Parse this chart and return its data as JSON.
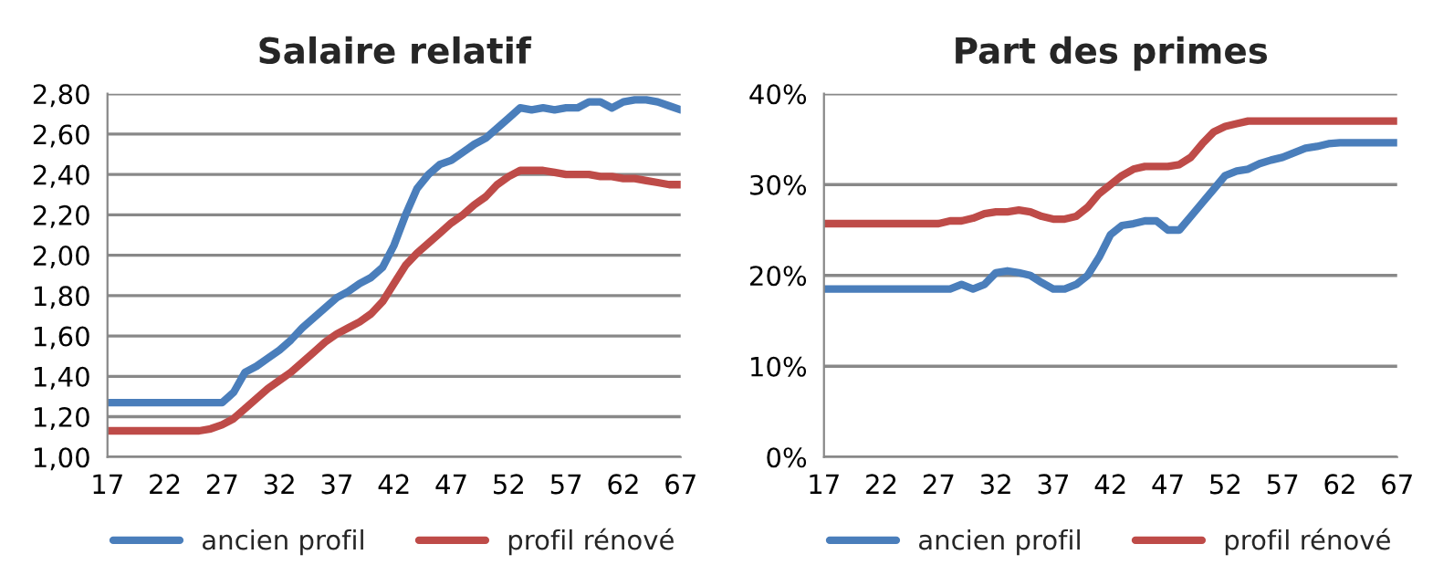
{
  "chart_data": [
    {
      "type": "line",
      "title": "Salaire relatif",
      "x": [
        17,
        18,
        19,
        20,
        21,
        22,
        23,
        24,
        25,
        26,
        27,
        28,
        29,
        30,
        31,
        32,
        33,
        34,
        35,
        36,
        37,
        38,
        39,
        40,
        41,
        42,
        43,
        44,
        45,
        46,
        47,
        48,
        49,
        50,
        51,
        52,
        53,
        54,
        55,
        56,
        57,
        58,
        59,
        60,
        61,
        62,
        63,
        64,
        65,
        66,
        67
      ],
      "series": [
        {
          "name": "ancien profil",
          "color": "#4a7ebb",
          "values": [
            1.27,
            1.27,
            1.27,
            1.27,
            1.27,
            1.27,
            1.27,
            1.27,
            1.27,
            1.27,
            1.27,
            1.32,
            1.42,
            1.45,
            1.49,
            1.53,
            1.58,
            1.64,
            1.69,
            1.74,
            1.79,
            1.82,
            1.86,
            1.89,
            1.94,
            2.05,
            2.2,
            2.33,
            2.4,
            2.45,
            2.47,
            2.51,
            2.55,
            2.58,
            2.63,
            2.68,
            2.73,
            2.72,
            2.73,
            2.72,
            2.73,
            2.73,
            2.76,
            2.76,
            2.73,
            2.76,
            2.77,
            2.77,
            2.76,
            2.74,
            2.72
          ]
        },
        {
          "name": "profil rénové",
          "color": "#be4b48",
          "values": [
            1.13,
            1.13,
            1.13,
            1.13,
            1.13,
            1.13,
            1.13,
            1.13,
            1.13,
            1.14,
            1.16,
            1.19,
            1.24,
            1.29,
            1.34,
            1.38,
            1.42,
            1.47,
            1.52,
            1.57,
            1.61,
            1.64,
            1.67,
            1.71,
            1.77,
            1.86,
            1.95,
            2.01,
            2.06,
            2.11,
            2.16,
            2.2,
            2.25,
            2.29,
            2.35,
            2.39,
            2.42,
            2.42,
            2.42,
            2.41,
            2.4,
            2.4,
            2.4,
            2.39,
            2.39,
            2.38,
            2.38,
            2.37,
            2.36,
            2.35,
            2.35
          ]
        }
      ],
      "xlim": [
        17,
        67
      ],
      "xticks": [
        17,
        22,
        27,
        32,
        37,
        42,
        47,
        52,
        57,
        62,
        67
      ],
      "ylim": [
        1.0,
        2.8
      ],
      "yticks": [
        {
          "value": 1.0,
          "label": "1,00"
        },
        {
          "value": 1.2,
          "label": "1,20"
        },
        {
          "value": 1.4,
          "label": "1,40"
        },
        {
          "value": 1.6,
          "label": "1,60"
        },
        {
          "value": 1.8,
          "label": "1,80"
        },
        {
          "value": 2.0,
          "label": "2,00"
        },
        {
          "value": 2.2,
          "label": "2,20"
        },
        {
          "value": 2.4,
          "label": "2,40"
        },
        {
          "value": 2.6,
          "label": "2,60"
        },
        {
          "value": 2.8,
          "label": "2,80"
        }
      ],
      "grid": "y",
      "legend": "bottom",
      "line_style": "solid",
      "marker": "none"
    },
    {
      "type": "line",
      "title": "Part des primes",
      "x": [
        17,
        18,
        19,
        20,
        21,
        22,
        23,
        24,
        25,
        26,
        27,
        28,
        29,
        30,
        31,
        32,
        33,
        34,
        35,
        36,
        37,
        38,
        39,
        40,
        41,
        42,
        43,
        44,
        45,
        46,
        47,
        48,
        49,
        50,
        51,
        52,
        53,
        54,
        55,
        56,
        57,
        58,
        59,
        60,
        61,
        62,
        63,
        64,
        65,
        66,
        67
      ],
      "series": [
        {
          "name": "ancien profil",
          "color": "#4a7ebb",
          "values": [
            18.5,
            18.5,
            18.5,
            18.5,
            18.5,
            18.5,
            18.5,
            18.5,
            18.5,
            18.5,
            18.5,
            18.5,
            19,
            18.5,
            19,
            20.3,
            20.5,
            20.3,
            20,
            19.2,
            18.5,
            18.5,
            19,
            20,
            22,
            24.5,
            25.5,
            25.7,
            26,
            26,
            25,
            25,
            26.5,
            28,
            29.5,
            31,
            31.5,
            31.7,
            32.3,
            32.7,
            33,
            33.5,
            34,
            34.2,
            34.5,
            34.6,
            34.6,
            34.6,
            34.6,
            34.6,
            34.6
          ]
        },
        {
          "name": "profil rénové",
          "color": "#be4b48",
          "values": [
            25.7,
            25.7,
            25.7,
            25.7,
            25.7,
            25.7,
            25.7,
            25.7,
            25.7,
            25.7,
            25.7,
            26,
            26,
            26.3,
            26.8,
            27,
            27,
            27.2,
            27,
            26.5,
            26.2,
            26.2,
            26.5,
            27.5,
            29,
            30,
            31,
            31.7,
            32,
            32,
            32,
            32.2,
            33,
            34.5,
            35.8,
            36.4,
            36.7,
            37,
            37,
            37,
            37,
            37,
            37,
            37,
            37,
            37,
            37,
            37,
            37,
            37,
            37
          ]
        }
      ],
      "xlim": [
        17,
        67
      ],
      "xticks": [
        17,
        22,
        27,
        32,
        37,
        42,
        47,
        52,
        57,
        62,
        67
      ],
      "ylim": [
        0,
        40
      ],
      "yticks": [
        {
          "value": 0,
          "label": "0%"
        },
        {
          "value": 10,
          "label": "10%"
        },
        {
          "value": 20,
          "label": "20%"
        },
        {
          "value": 30,
          "label": "30%"
        },
        {
          "value": 40,
          "label": "40%"
        }
      ],
      "grid": "y",
      "legend": "bottom",
      "line_style": "solid",
      "marker": "none"
    }
  ]
}
